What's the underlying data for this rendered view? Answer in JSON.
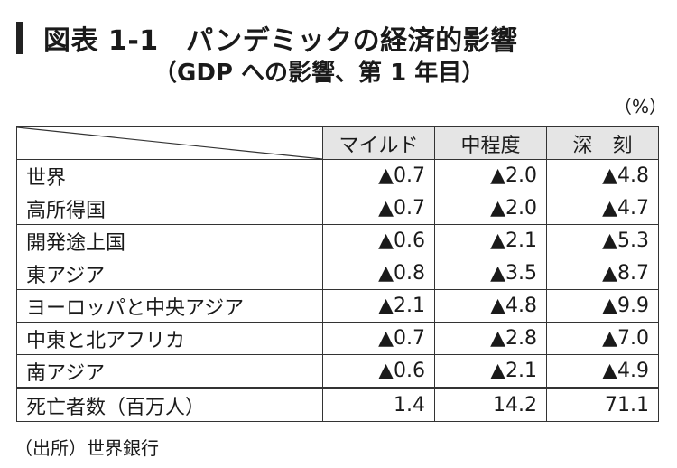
{
  "title": {
    "line1": "図表 1-1　パンデミックの経済的影響",
    "line2": "（GDP への影響、第 1 年目）"
  },
  "unit": "（%）",
  "table": {
    "headers": [
      "マイルド",
      "中程度",
      "深　刻"
    ],
    "rows": [
      {
        "label": "世界",
        "values": [
          "▲0.7",
          "▲2.0",
          "▲4.8"
        ]
      },
      {
        "label": "高所得国",
        "values": [
          "▲0.7",
          "▲2.0",
          "▲4.7"
        ]
      },
      {
        "label": "開発途上国",
        "values": [
          "▲0.6",
          "▲2.1",
          "▲5.3"
        ]
      },
      {
        "label": "東アジア",
        "values": [
          "▲0.8",
          "▲3.5",
          "▲8.7"
        ]
      },
      {
        "label": "ヨーロッパと中央アジア",
        "values": [
          "▲2.1",
          "▲4.8",
          "▲9.9"
        ]
      },
      {
        "label": "中東と北アフリカ",
        "values": [
          "▲0.7",
          "▲2.8",
          "▲7.0"
        ]
      },
      {
        "label": "南アジア",
        "values": [
          "▲0.6",
          "▲2.1",
          "▲4.9"
        ]
      }
    ],
    "total": {
      "label": "死亡者数（百万人）",
      "values": [
        "1.4",
        "14.2",
        "71.1"
      ]
    }
  },
  "source": "（出所）世界銀行"
}
